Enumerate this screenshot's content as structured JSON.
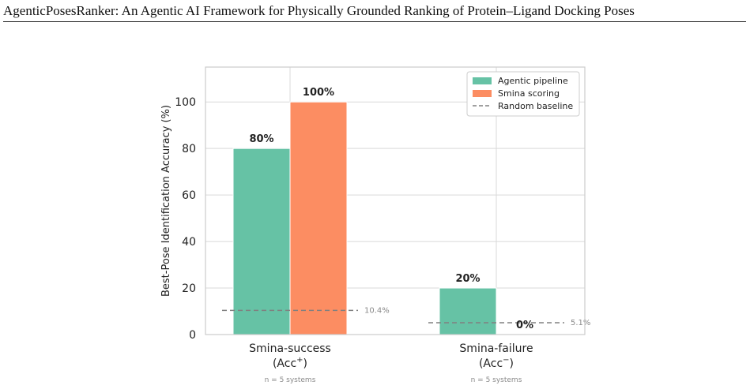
{
  "header": {
    "running_title": "AgenticPosesRanker: An Agentic AI Framework for Physically Grounded Ranking of Protein–Ligand Docking Poses"
  },
  "chart_data": {
    "type": "bar",
    "categories": [
      {
        "line1": "Smina-success",
        "line2_base": "(Acc",
        "line2_sup": "+",
        "line2_end": ")",
        "note": "n = 5 systems"
      },
      {
        "line1": "Smina-failure",
        "line2_base": "(Acc",
        "line2_sup": "−",
        "line2_end": ")",
        "note": "n = 5 systems"
      }
    ],
    "series": [
      {
        "name": "Agentic pipeline",
        "color": "#66c2a5",
        "values": [
          80,
          20
        ],
        "labels": [
          "80%",
          "20%"
        ]
      },
      {
        "name": "Smina scoring",
        "color": "#fc8d62",
        "values": [
          100,
          0
        ],
        "labels": [
          "100%",
          "0%"
        ]
      }
    ],
    "baselines": [
      {
        "name": "Random baseline",
        "values": [
          10.4,
          5.1
        ],
        "labels": [
          "10.4%",
          "5.1%"
        ],
        "color": "#808080"
      }
    ],
    "ylabel": "Best-Pose Identification Accuracy (%)",
    "xlabel": "",
    "ylim": [
      0,
      115
    ],
    "yticks": [
      0,
      20,
      40,
      60,
      80,
      100
    ],
    "grid": true,
    "legend_position": "top-right"
  }
}
